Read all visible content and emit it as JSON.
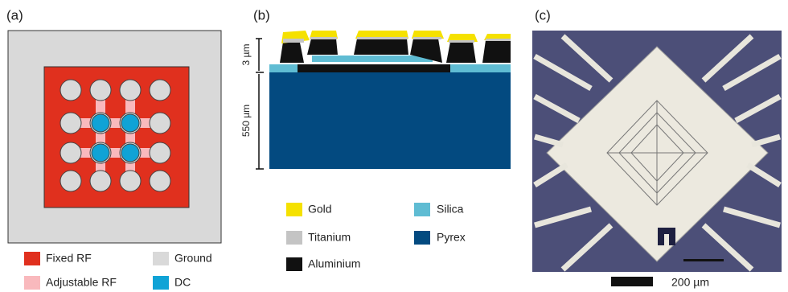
{
  "panels": [
    {
      "label": "(a)",
      "legend": [
        "Fixed RF",
        "Ground",
        "Adjustable RF",
        "DC"
      ]
    },
    {
      "label": "(b)",
      "scale_labels": [
        "3 µm",
        "550 µm"
      ],
      "legend": [
        "Gold",
        "Silica",
        "Titanium",
        "Pyrex",
        "Aluminium"
      ]
    },
    {
      "label": "(c)",
      "scale_bar": "200 µm"
    }
  ]
}
